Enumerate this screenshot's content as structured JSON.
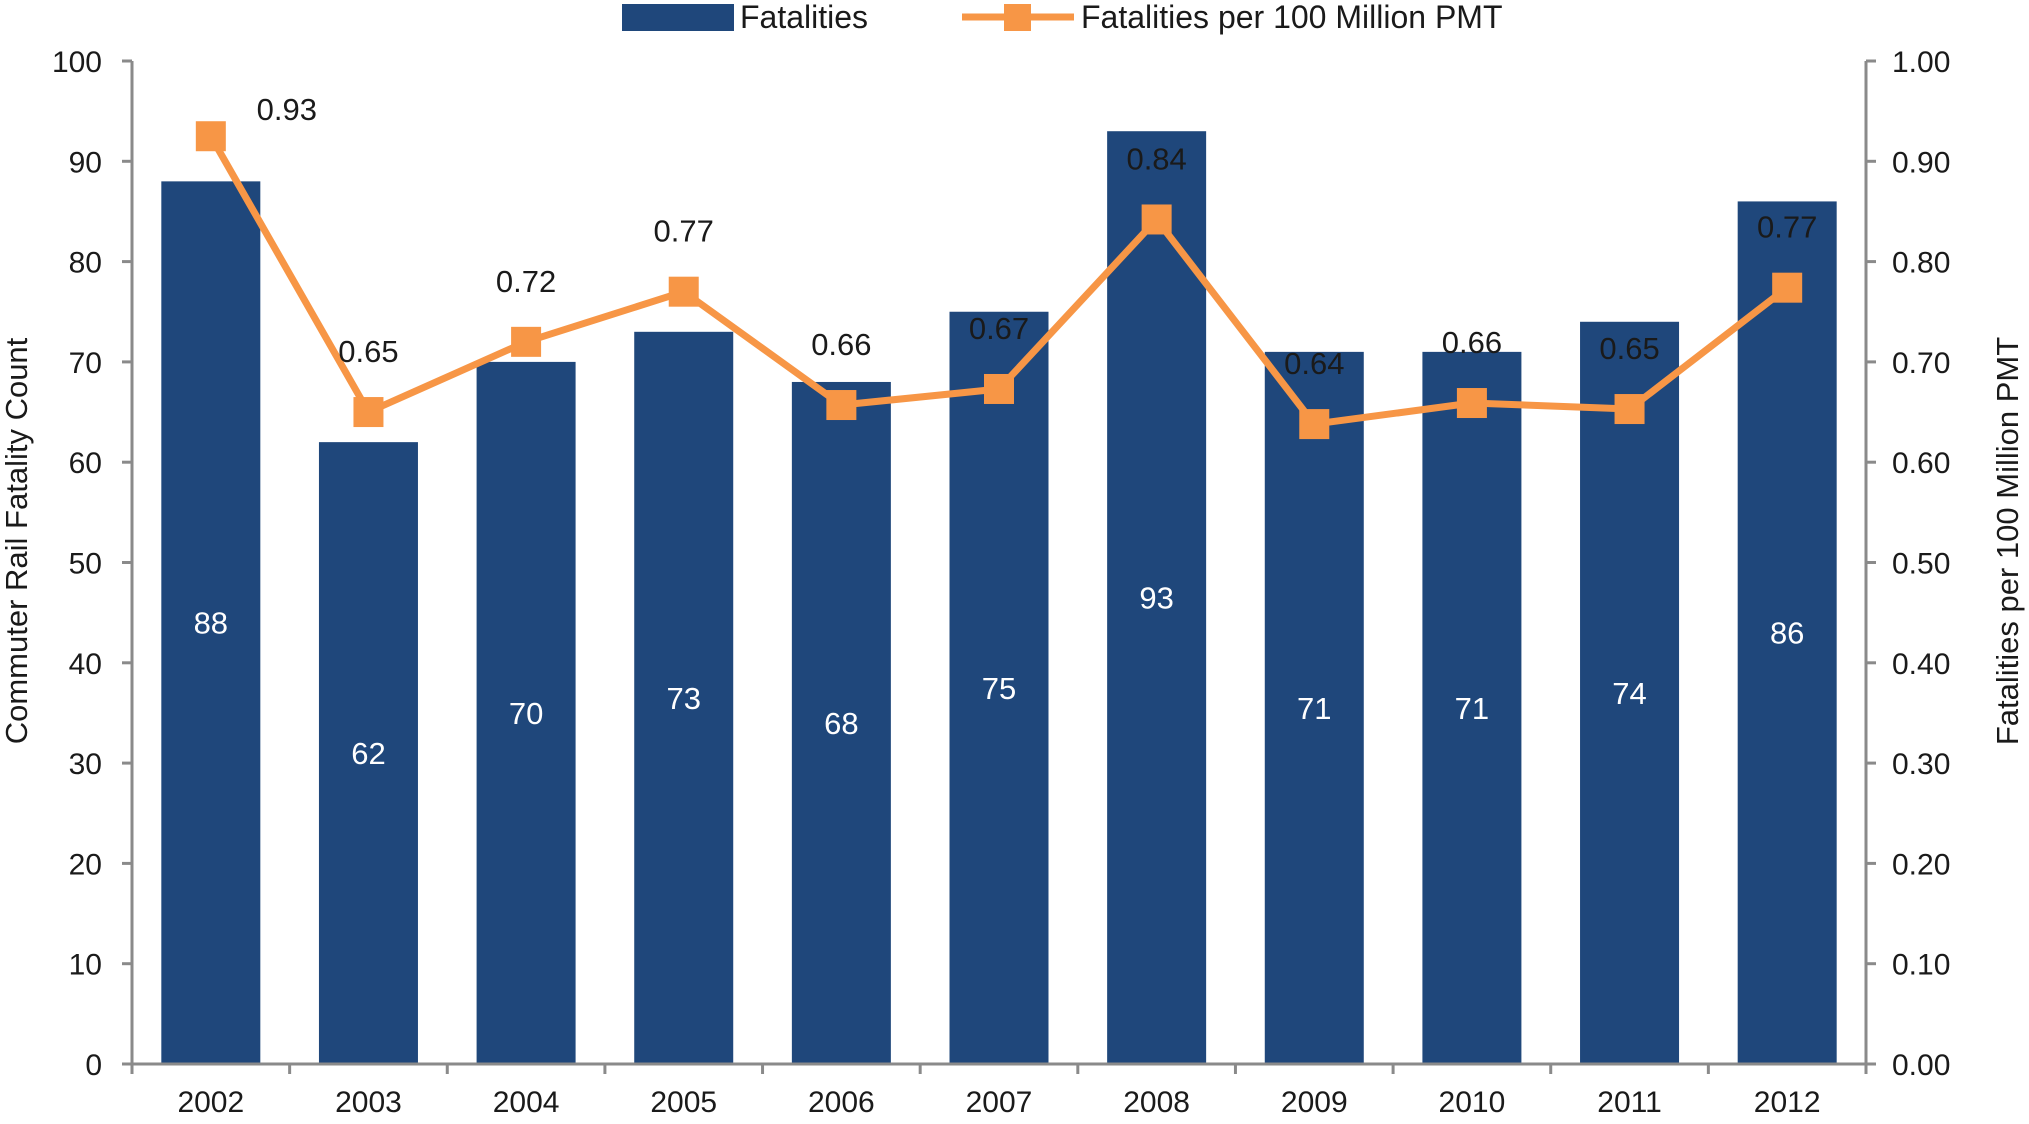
{
  "colors": {
    "bar": "#1f477b",
    "line": "#f79646",
    "axis": "#8a8a8a",
    "text": "#1a1a1a",
    "bar_label": "#ffffff"
  },
  "chart_data": {
    "type": "bar",
    "title": "",
    "categories": [
      "2002",
      "2003",
      "2004",
      "2005",
      "2006",
      "2007",
      "2008",
      "2009",
      "2010",
      "2011",
      "2012"
    ],
    "series": [
      {
        "name": "Fatalities",
        "type": "bar",
        "axis": "left",
        "values": [
          88,
          62,
          70,
          73,
          68,
          75,
          93,
          71,
          71,
          74,
          86
        ],
        "labels": [
          "88",
          "62",
          "70",
          "73",
          "68",
          "75",
          "93",
          "71",
          "71",
          "74",
          "86"
        ]
      },
      {
        "name": "Fatalities per 100 Million PMT",
        "type": "line",
        "axis": "right",
        "marker": "square",
        "values": [
          0.925,
          0.65,
          0.72,
          0.77,
          0.657,
          0.673,
          0.842,
          0.638,
          0.659,
          0.653,
          0.774
        ],
        "labels": [
          "0.93",
          "0.65",
          "0.72",
          "0.77",
          "0.66",
          "0.67",
          "0.84",
          "0.64",
          "0.66",
          "0.65",
          "0.77"
        ]
      }
    ],
    "ylabel": "Commuter Rail Fatality Count",
    "y2label": "Fatalities per 100 Million PMT",
    "ylim": [
      0,
      100
    ],
    "y2lim": [
      0,
      1.0
    ],
    "yticks": [
      "0",
      "10",
      "20",
      "30",
      "40",
      "50",
      "60",
      "70",
      "80",
      "90",
      "100"
    ],
    "y2ticks": [
      "0.00",
      "0.10",
      "0.20",
      "0.30",
      "0.40",
      "0.50",
      "0.60",
      "0.70",
      "0.80",
      "0.90",
      "1.00"
    ],
    "grid": false,
    "legend_position": "top-center"
  }
}
